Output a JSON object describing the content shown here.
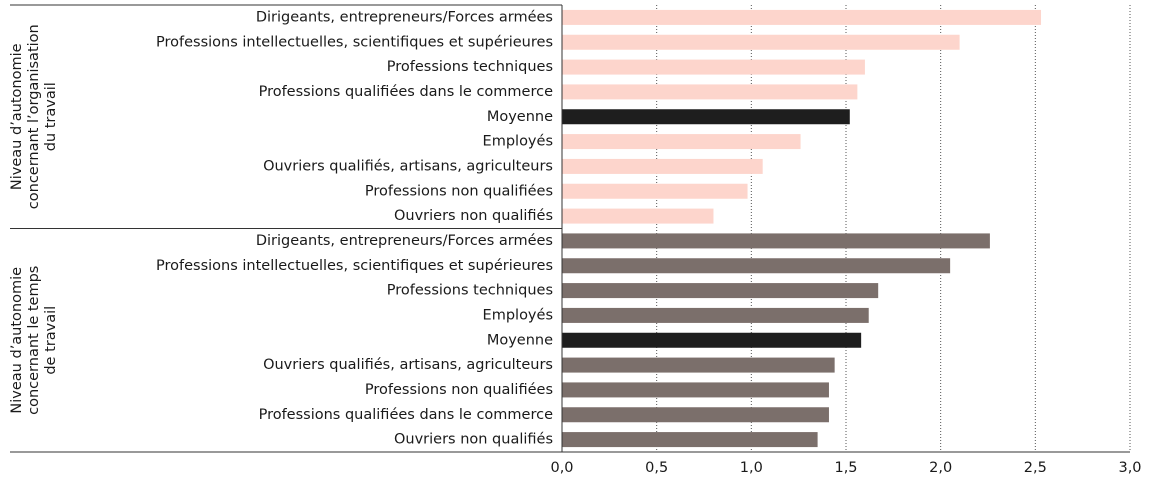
{
  "chart_data": {
    "type": "bar",
    "orientation": "horizontal",
    "groups": [
      {
        "label": [
          "Niveau d’autonomie",
          "concernant l’organisation",
          "du travail"
        ],
        "categories": [
          "Dirigeants, entrepreneurs/Forces armées",
          "Professions intellectuelles, scientifiques et supérieures",
          "Professions techniques",
          "Professions qualifiées dans le commerce",
          "Moyenne",
          "Employés",
          "Ouvriers qualifiés, artisans, agriculteurs",
          "Professions non qualifiées",
          "Ouvriers non qualifiés"
        ],
        "values": [
          2.53,
          2.1,
          1.6,
          1.56,
          1.52,
          1.26,
          1.06,
          0.98,
          0.8
        ],
        "colors": [
          "#fdd5cc",
          "#fdd5cc",
          "#fdd5cc",
          "#fdd5cc",
          "#1e1e1e",
          "#fdd5cc",
          "#fdd5cc",
          "#fdd5cc",
          "#fdd5cc"
        ]
      },
      {
        "label": [
          "Niveau d’autonomie",
          "concernant le temps",
          "de travail"
        ],
        "categories": [
          "Dirigeants, entrepreneurs/Forces armées",
          "Professions intellectuelles, scientifiques et supérieures",
          "Professions techniques",
          "Employés",
          "Moyenne",
          "Ouvriers qualifiés, artisans, agriculteurs",
          "Professions non qualifiées",
          "Professions qualifiées dans le commerce",
          "Ouvriers non qualifiés"
        ],
        "values": [
          2.26,
          2.05,
          1.67,
          1.62,
          1.58,
          1.44,
          1.41,
          1.41,
          1.35
        ],
        "colors": [
          "#7b6f6b",
          "#7b6f6b",
          "#7b6f6b",
          "#7b6f6b",
          "#1e1e1e",
          "#7b6f6b",
          "#7b6f6b",
          "#7b6f6b",
          "#7b6f6b"
        ]
      }
    ],
    "xlim": [
      0,
      3
    ],
    "xticks": [
      {
        "value": 0,
        "label": "0,0"
      },
      {
        "value": 0.5,
        "label": "0,5"
      },
      {
        "value": 1,
        "label": "1,0"
      },
      {
        "value": 1.5,
        "label": "1,5"
      },
      {
        "value": 2,
        "label": "2,0"
      },
      {
        "value": 2.5,
        "label": "2,5"
      },
      {
        "value": 3,
        "label": "3,0"
      }
    ],
    "grid": true
  }
}
